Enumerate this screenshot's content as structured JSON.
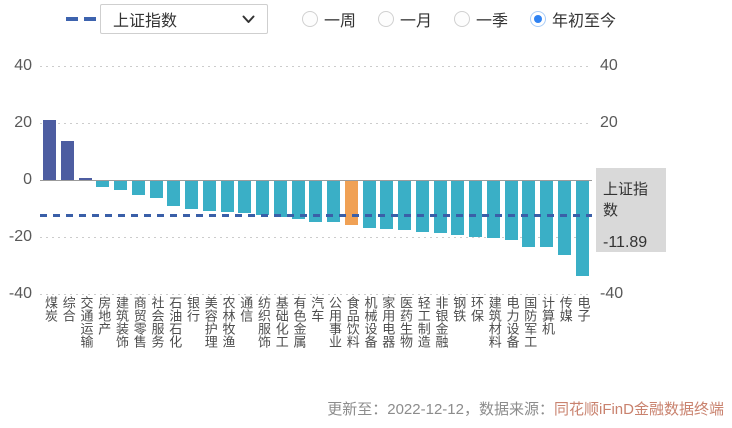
{
  "header": {
    "legend_series": "上证指数",
    "dropdown": {
      "value": "上证指数"
    },
    "periods": [
      {
        "label": "一周",
        "selected": false
      },
      {
        "label": "一月",
        "selected": false
      },
      {
        "label": "一季",
        "selected": false
      },
      {
        "label": "年初至今",
        "selected": true
      }
    ]
  },
  "chart_data": {
    "type": "bar",
    "title": "",
    "xlabel": "",
    "ylabel": "",
    "ylim": [
      -40,
      40
    ],
    "yticks": [
      40,
      20,
      0,
      -20,
      -40
    ],
    "grid": "dotted-horizontal",
    "categories": [
      "煤炭",
      "综合",
      "交通运输",
      "房地产",
      "建筑装饰",
      "商贸零售",
      "社会服务",
      "石油石化",
      "银行",
      "美容护理",
      "农林牧渔",
      "通信",
      "纺织服饰",
      "基础化工",
      "有色金属",
      "汽车",
      "公用事业",
      "食品饮料",
      "机械设备",
      "家用电器",
      "医药生物",
      "轻工制造",
      "非银金融",
      "钢铁",
      "环保",
      "建筑材料",
      "电力设备",
      "国防军工",
      "计算机",
      "传媒",
      "电子"
    ],
    "values": [
      21.0,
      13.8,
      0.8,
      -2.0,
      -3.3,
      -5.0,
      -5.8,
      -8.8,
      -9.7,
      -10.5,
      -11.0,
      -11.2,
      -12.0,
      -12.5,
      -13.2,
      -14.3,
      -14.5,
      -15.5,
      -16.6,
      -16.9,
      -17.3,
      -17.9,
      -18.3,
      -19.0,
      -19.8,
      -20.0,
      -20.7,
      -23.0,
      -23.3,
      -25.9,
      -33.3
    ],
    "highlight_index": 17,
    "index_line": {
      "name": "上证指数",
      "value": -11.89
    },
    "colors": {
      "positive": "#4d5da1",
      "negative": "#3aafc6",
      "highlight": "#f0a155",
      "index_line": "#3a5fa8"
    }
  },
  "annotation_box": {
    "title": "上证指数",
    "value": "-11.89"
  },
  "footer": {
    "updated_label": "更新至：2022-12-12，数据来源：",
    "source": "同花顺iFinD金融数据终端"
  }
}
